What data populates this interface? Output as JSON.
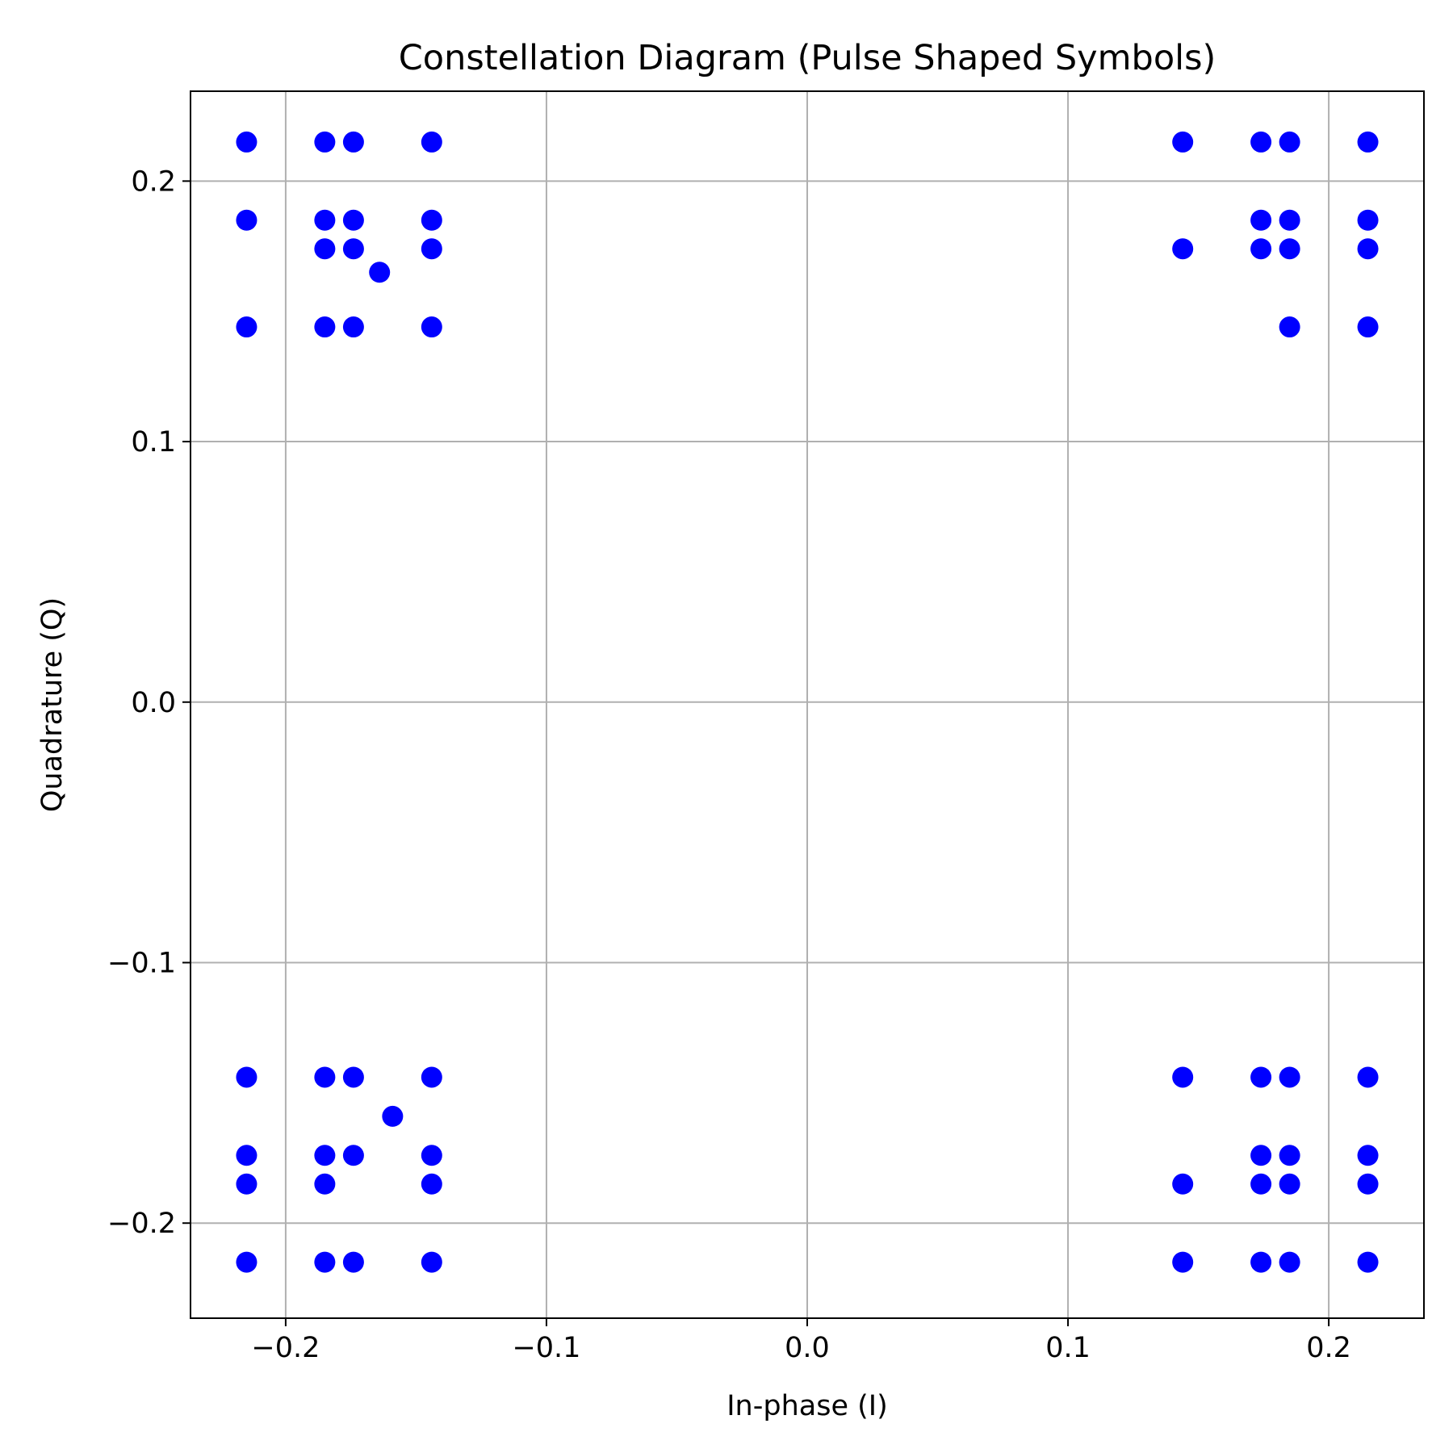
{
  "chart_data": {
    "type": "scatter",
    "title": "Constellation Diagram (Pulse Shaped Symbols)",
    "xlabel": "In-phase (I)",
    "ylabel": "Quadrature (Q)",
    "xlim": [
      -0.2365,
      0.2365
    ],
    "ylim": [
      -0.2365,
      0.2345
    ],
    "xticks": [
      -0.2,
      -0.1,
      0.0,
      0.1,
      0.2
    ],
    "yticks": [
      -0.2,
      -0.1,
      0.0,
      0.1,
      0.2
    ],
    "xtick_labels": [
      "−0.2",
      "−0.1",
      "0.0",
      "0.1",
      "0.2"
    ],
    "ytick_labels": [
      "−0.2",
      "−0.1",
      "0.0",
      "0.1",
      "0.2"
    ],
    "grid": true,
    "marker_color": "#0000ff",
    "series": [
      {
        "points": [
          [
            -0.215,
            0.215
          ],
          [
            -0.185,
            0.215
          ],
          [
            -0.174,
            0.215
          ],
          [
            -0.144,
            0.215
          ],
          [
            -0.215,
            0.185
          ],
          [
            -0.185,
            0.185
          ],
          [
            -0.174,
            0.185
          ],
          [
            -0.144,
            0.185
          ],
          [
            -0.185,
            0.174
          ],
          [
            -0.174,
            0.174
          ],
          [
            -0.144,
            0.174
          ],
          [
            -0.164,
            0.165
          ],
          [
            -0.215,
            0.144
          ],
          [
            -0.185,
            0.144
          ],
          [
            -0.174,
            0.144
          ],
          [
            -0.144,
            0.144
          ],
          [
            0.144,
            0.215
          ],
          [
            0.174,
            0.215
          ],
          [
            0.185,
            0.215
          ],
          [
            0.215,
            0.215
          ],
          [
            0.174,
            0.185
          ],
          [
            0.185,
            0.185
          ],
          [
            0.215,
            0.185
          ],
          [
            0.144,
            0.174
          ],
          [
            0.174,
            0.174
          ],
          [
            0.185,
            0.174
          ],
          [
            0.215,
            0.174
          ],
          [
            0.185,
            0.144
          ],
          [
            0.215,
            0.144
          ],
          [
            -0.215,
            -0.144
          ],
          [
            -0.185,
            -0.144
          ],
          [
            -0.174,
            -0.144
          ],
          [
            -0.144,
            -0.144
          ],
          [
            -0.159,
            -0.159
          ],
          [
            -0.215,
            -0.174
          ],
          [
            -0.185,
            -0.174
          ],
          [
            -0.174,
            -0.174
          ],
          [
            -0.144,
            -0.174
          ],
          [
            -0.215,
            -0.185
          ],
          [
            -0.185,
            -0.185
          ],
          [
            -0.144,
            -0.185
          ],
          [
            -0.215,
            -0.215
          ],
          [
            -0.185,
            -0.215
          ],
          [
            -0.174,
            -0.215
          ],
          [
            -0.144,
            -0.215
          ],
          [
            0.144,
            -0.144
          ],
          [
            0.174,
            -0.144
          ],
          [
            0.185,
            -0.144
          ],
          [
            0.215,
            -0.144
          ],
          [
            0.174,
            -0.174
          ],
          [
            0.185,
            -0.174
          ],
          [
            0.215,
            -0.174
          ],
          [
            0.144,
            -0.185
          ],
          [
            0.174,
            -0.185
          ],
          [
            0.185,
            -0.185
          ],
          [
            0.215,
            -0.185
          ],
          [
            0.144,
            -0.215
          ],
          [
            0.174,
            -0.215
          ],
          [
            0.185,
            -0.215
          ],
          [
            0.215,
            -0.215
          ]
        ]
      }
    ]
  }
}
